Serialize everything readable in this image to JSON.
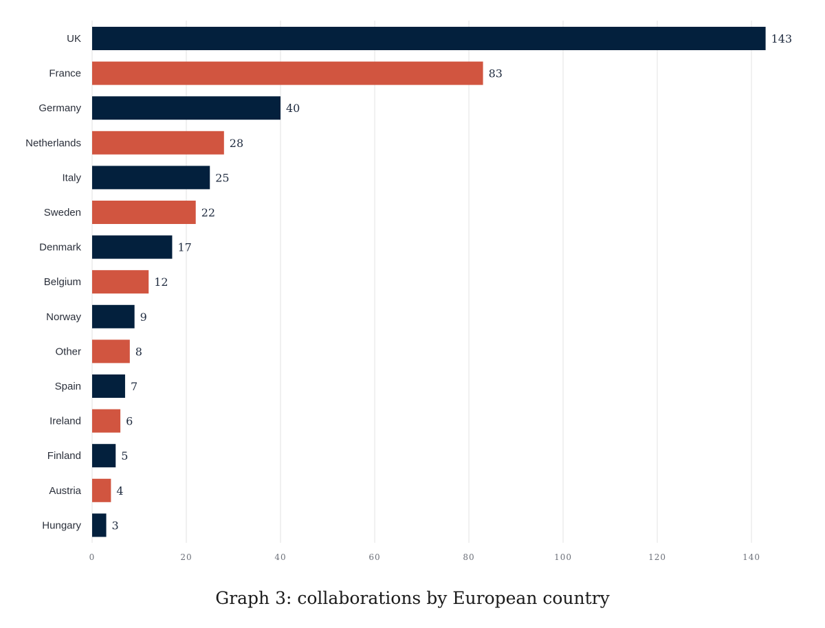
{
  "chart_data": {
    "type": "bar",
    "orientation": "horizontal",
    "categories": [
      "UK",
      "France",
      "Germany",
      "Netherlands",
      "Italy",
      "Sweden",
      "Denmark",
      "Belgium",
      "Norway",
      "Other",
      "Spain",
      "Ireland",
      "Finland",
      "Austria",
      "Hungary"
    ],
    "values": [
      143,
      83,
      40,
      28,
      25,
      22,
      17,
      12,
      9,
      8,
      7,
      6,
      5,
      4,
      3
    ],
    "bar_colors": [
      "#03203d",
      "#d15540"
    ],
    "bar_color_pattern": "alternating",
    "xticks": [
      0,
      20,
      40,
      60,
      80,
      100,
      120,
      140
    ],
    "xlim": [
      0,
      147
    ],
    "grid": "vertical",
    "title": "",
    "xlabel": "",
    "ylabel": ""
  },
  "caption": "Graph 3: collaborations by European country"
}
